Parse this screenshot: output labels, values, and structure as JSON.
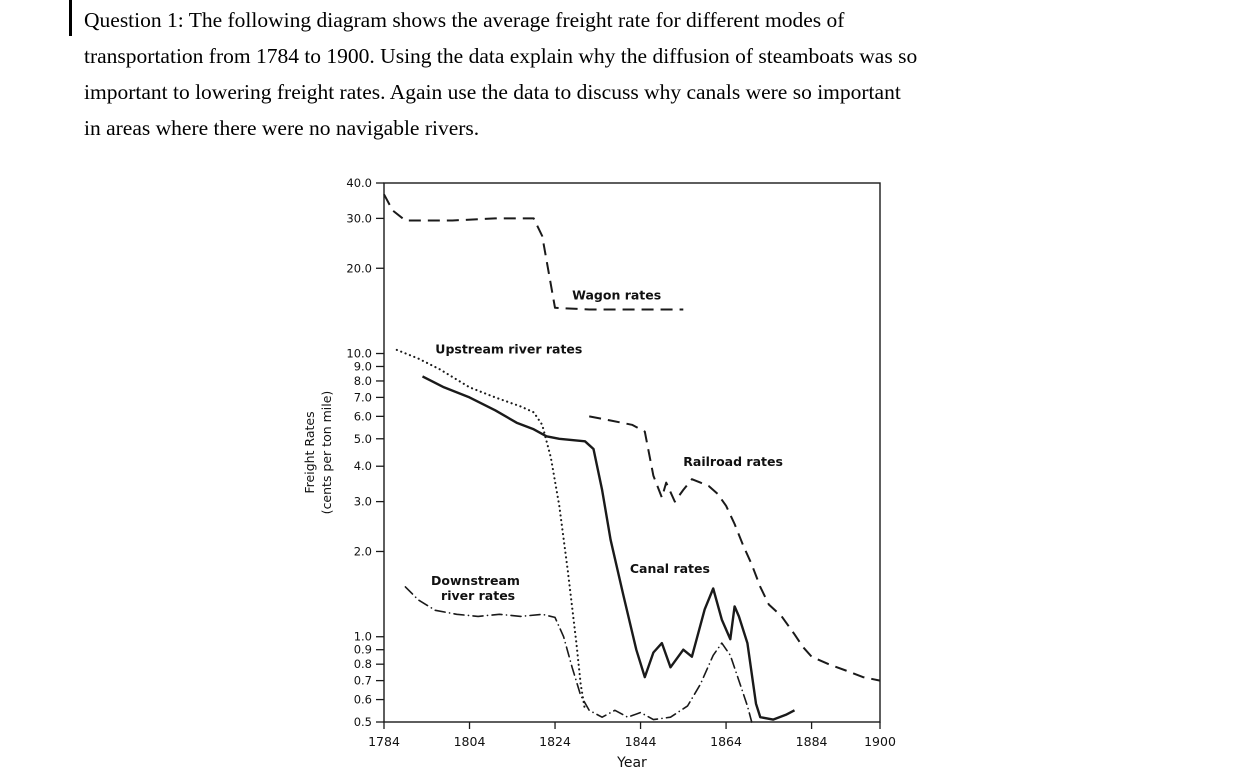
{
  "page": {
    "question_lines": [
      "Question 1: The following diagram shows the average freight rate for different modes of",
      "transportation from 1784 to 1900. Using the data explain why the diffusion of steamboats was so",
      "important to lowering freight rates. Again use the data to discuss why canals were so important",
      "in areas where there were no navigable rivers."
    ]
  },
  "chart_data": {
    "type": "line",
    "title": "",
    "xlabel": "Year",
    "ylabel_lines": [
      "Freight Rates",
      "(cents per ton mile)"
    ],
    "y_scale": "log",
    "xlim": [
      1784,
      1900
    ],
    "ylim": [
      0.5,
      40
    ],
    "x_ticks": [
      1784,
      1804,
      1824,
      1844,
      1864,
      1884,
      1900
    ],
    "y_ticks": [
      0.5,
      0.6,
      0.7,
      0.8,
      0.9,
      1.0,
      2.0,
      3.0,
      4.0,
      5.0,
      6.0,
      7.0,
      8.0,
      9.0,
      10.0,
      20.0,
      30.0,
      40.0
    ],
    "grid": false,
    "legend": "inline-labels",
    "ink_color": "#1a1a1a",
    "series": [
      {
        "name": "wagon-rates",
        "label": "Wagon rates",
        "line_style": "dashed",
        "points": [
          [
            1784,
            36.5
          ],
          [
            1786,
            32
          ],
          [
            1789,
            29.5
          ],
          [
            1800,
            29.5
          ],
          [
            1810,
            30
          ],
          [
            1819,
            30
          ],
          [
            1821,
            26
          ],
          [
            1824,
            14.5
          ],
          [
            1832,
            14.3
          ],
          [
            1844,
            14.3
          ],
          [
            1854,
            14.3
          ]
        ]
      },
      {
        "name": "upstream-river-rates",
        "label": "Upstream river rates",
        "line_style": "dotted",
        "points": [
          [
            1787,
            10.3
          ],
          [
            1792,
            9.6
          ],
          [
            1797,
            8.8
          ],
          [
            1804,
            7.6
          ],
          [
            1810,
            7.0
          ],
          [
            1816,
            6.5
          ],
          [
            1819,
            6.2
          ],
          [
            1821,
            5.6
          ],
          [
            1823,
            4.3
          ],
          [
            1825,
            2.9
          ],
          [
            1827,
            1.7
          ],
          [
            1829,
            0.95
          ],
          [
            1830,
            0.68
          ],
          [
            1831,
            0.55
          ]
        ]
      },
      {
        "name": "downstream-river-rates",
        "label": "Downstream river rates",
        "line_style": "dash-dot",
        "points": [
          [
            1789,
            1.5
          ],
          [
            1792,
            1.35
          ],
          [
            1796,
            1.24
          ],
          [
            1801,
            1.2
          ],
          [
            1806,
            1.18
          ],
          [
            1811,
            1.2
          ],
          [
            1816,
            1.18
          ],
          [
            1821,
            1.2
          ],
          [
            1824,
            1.17
          ],
          [
            1826,
            1.0
          ],
          [
            1828,
            0.78
          ],
          [
            1830,
            0.62
          ],
          [
            1832,
            0.55
          ],
          [
            1835,
            0.52
          ],
          [
            1838,
            0.55
          ],
          [
            1841,
            0.52
          ],
          [
            1844,
            0.54
          ],
          [
            1847,
            0.51
          ],
          [
            1851,
            0.52
          ],
          [
            1855,
            0.57
          ],
          [
            1858,
            0.68
          ],
          [
            1861,
            0.86
          ],
          [
            1863,
            0.95
          ],
          [
            1865,
            0.86
          ],
          [
            1867,
            0.7
          ],
          [
            1869,
            0.57
          ],
          [
            1870,
            0.5
          ]
        ]
      },
      {
        "name": "canal-rates",
        "label": "Canal rates",
        "line_style": "solid",
        "points": [
          [
            1793,
            8.3
          ],
          [
            1798,
            7.6
          ],
          [
            1804,
            7.0
          ],
          [
            1810,
            6.3
          ],
          [
            1815,
            5.7
          ],
          [
            1819,
            5.4
          ],
          [
            1822,
            5.1
          ],
          [
            1825,
            5.0
          ],
          [
            1831,
            4.9
          ],
          [
            1833,
            4.6
          ],
          [
            1835,
            3.3
          ],
          [
            1837,
            2.2
          ],
          [
            1840,
            1.4
          ],
          [
            1843,
            0.9
          ],
          [
            1845,
            0.72
          ],
          [
            1847,
            0.88
          ],
          [
            1849,
            0.95
          ],
          [
            1851,
            0.78
          ],
          [
            1854,
            0.9
          ],
          [
            1856,
            0.85
          ],
          [
            1859,
            1.25
          ],
          [
            1861,
            1.48
          ],
          [
            1863,
            1.15
          ],
          [
            1865,
            0.98
          ],
          [
            1866,
            1.28
          ],
          [
            1867,
            1.18
          ],
          [
            1869,
            0.95
          ],
          [
            1871,
            0.58
          ],
          [
            1872,
            0.52
          ],
          [
            1875,
            0.51
          ],
          [
            1878,
            0.53
          ],
          [
            1880,
            0.55
          ]
        ]
      },
      {
        "name": "railroad-rates",
        "label": "Railroad rates",
        "line_style": "dashed",
        "points": [
          [
            1832,
            6.0
          ],
          [
            1837,
            5.8
          ],
          [
            1842,
            5.6
          ],
          [
            1845,
            5.3
          ],
          [
            1847,
            3.7
          ],
          [
            1849,
            3.1
          ],
          [
            1850,
            3.5
          ],
          [
            1852,
            3.0
          ],
          [
            1854,
            3.3
          ],
          [
            1856,
            3.6
          ],
          [
            1858,
            3.5
          ],
          [
            1860,
            3.4
          ],
          [
            1862,
            3.2
          ],
          [
            1864,
            2.9
          ],
          [
            1866,
            2.5
          ],
          [
            1868,
            2.1
          ],
          [
            1870,
            1.8
          ],
          [
            1872,
            1.5
          ],
          [
            1874,
            1.3
          ],
          [
            1877,
            1.18
          ],
          [
            1880,
            1.02
          ],
          [
            1882,
            0.92
          ],
          [
            1884,
            0.85
          ],
          [
            1888,
            0.8
          ],
          [
            1892,
            0.76
          ],
          [
            1896,
            0.72
          ],
          [
            1900,
            0.7
          ]
        ]
      }
    ],
    "labels": [
      {
        "lines": [
          "Wagon rates"
        ],
        "year": 1828,
        "value": 15.5,
        "anchor": "start"
      },
      {
        "lines": [
          "Upstream river rates"
        ],
        "year": 1796,
        "value": 10.0,
        "anchor": "start"
      },
      {
        "lines": [
          "Railroad rates"
        ],
        "year": 1854,
        "value": 4.0,
        "anchor": "start"
      },
      {
        "lines": [
          "Canal rates"
        ],
        "year": 1841.5,
        "value": 1.68,
        "anchor": "start"
      },
      {
        "lines": [
          "Downstream",
          "river rates"
        ],
        "year": 1795,
        "value": 1.52,
        "anchor": "start"
      }
    ]
  }
}
